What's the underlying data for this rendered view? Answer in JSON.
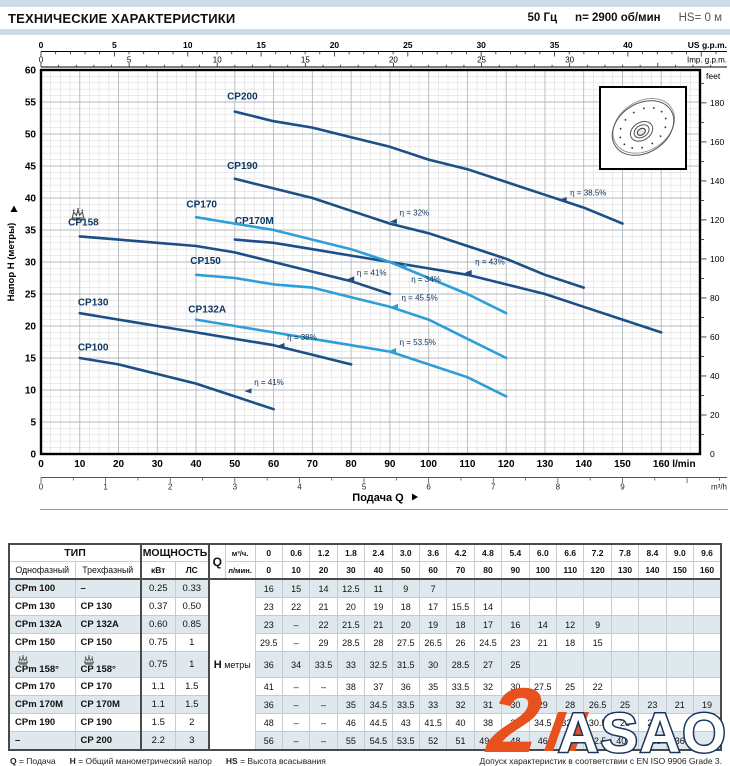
{
  "header": {
    "title": "ТЕХНИЧЕСКИЕ ХАРАКТЕРИСТИКИ",
    "frequency": "50 Гц",
    "speed": "n= 2900 об/мин",
    "suction": "HS= 0 м"
  },
  "chart_data": {
    "type": "line",
    "xlabel": "Подача Q",
    "ylabel": "Напор H (метры)",
    "x_unit": "l/min",
    "x_range": [
      0,
      170
    ],
    "y_range": [
      0,
      60
    ],
    "x_ticks_lmin": [
      0,
      10,
      20,
      30,
      40,
      50,
      60,
      70,
      80,
      90,
      100,
      110,
      120,
      130,
      140,
      150,
      160
    ],
    "y_ticks_m": [
      0,
      5,
      10,
      15,
      20,
      25,
      30,
      35,
      40,
      45,
      50,
      55,
      60
    ],
    "axis_us_gpm": {
      "label": "US g.p.m.",
      "ticks": [
        0,
        5,
        10,
        15,
        20,
        25,
        30,
        35,
        40
      ]
    },
    "axis_imp_gpm": {
      "label": "Imp. g.p.m.",
      "ticks": [
        0,
        5,
        10,
        15,
        20,
        25,
        30
      ]
    },
    "axis_m3h": {
      "label": "m³/h",
      "ticks": [
        0,
        1,
        2,
        3,
        4,
        5,
        6,
        7,
        8,
        9
      ]
    },
    "axis_feet": {
      "label": "feet",
      "ticks": [
        0,
        20,
        40,
        60,
        80,
        100,
        120,
        140,
        160,
        180
      ]
    },
    "colors": {
      "dark": "#1c4e87",
      "light": "#2d9ed8"
    },
    "series": [
      {
        "name": "CP100",
        "tone": "dark",
        "crown": false,
        "label_at": [
          9.5,
          16.2
        ],
        "points": [
          [
            10,
            15
          ],
          [
            20,
            14
          ],
          [
            30,
            12.5
          ],
          [
            40,
            11
          ],
          [
            50,
            9
          ],
          [
            60,
            7
          ]
        ]
      },
      {
        "name": "CP130",
        "tone": "dark",
        "crown": false,
        "label_at": [
          9.5,
          23.2
        ],
        "points": [
          [
            10,
            22
          ],
          [
            20,
            21
          ],
          [
            30,
            20
          ],
          [
            40,
            19
          ],
          [
            50,
            18
          ],
          [
            60,
            17
          ],
          [
            70,
            15.5
          ],
          [
            80,
            14
          ]
        ]
      },
      {
        "name": "CP132A",
        "tone": "light",
        "crown": false,
        "label_at": [
          38,
          22.1
        ],
        "points": [
          [
            40,
            21
          ],
          [
            50,
            20
          ],
          [
            60,
            19
          ],
          [
            70,
            18
          ],
          [
            80,
            17
          ],
          [
            90,
            16
          ],
          [
            100,
            14
          ],
          [
            110,
            12
          ],
          [
            120,
            9
          ]
        ]
      },
      {
        "name": "CP150",
        "tone": "light",
        "crown": false,
        "label_at": [
          38.5,
          29.7
        ],
        "points": [
          [
            40,
            28
          ],
          [
            50,
            27.5
          ],
          [
            60,
            26.5
          ],
          [
            70,
            26
          ],
          [
            80,
            24.5
          ],
          [
            90,
            23
          ],
          [
            100,
            21
          ],
          [
            110,
            18
          ],
          [
            120,
            15
          ]
        ]
      },
      {
        "name": "CP158",
        "tone": "dark",
        "crown": true,
        "label_at": [
          7,
          35.7
        ],
        "points": [
          [
            10,
            34
          ],
          [
            20,
            33.5
          ],
          [
            30,
            33
          ],
          [
            40,
            32.5
          ],
          [
            50,
            31.5
          ],
          [
            60,
            30
          ],
          [
            70,
            28.5
          ],
          [
            80,
            27
          ],
          [
            90,
            25
          ]
        ]
      },
      {
        "name": "CP170M",
        "tone": "dark",
        "crown": false,
        "label_at": [
          50,
          35.9
        ],
        "points": [
          [
            50,
            33.5
          ],
          [
            60,
            33
          ],
          [
            70,
            32
          ],
          [
            80,
            31
          ],
          [
            90,
            30
          ],
          [
            100,
            29
          ],
          [
            110,
            28
          ],
          [
            120,
            26.5
          ],
          [
            130,
            25
          ],
          [
            140,
            23
          ],
          [
            150,
            21
          ],
          [
            160,
            19
          ]
        ]
      },
      {
        "name": "CP170",
        "tone": "light",
        "crown": false,
        "label_at": [
          37.5,
          38.5
        ],
        "points": [
          [
            40,
            37
          ],
          [
            50,
            36
          ],
          [
            60,
            35
          ],
          [
            70,
            33.5
          ],
          [
            80,
            32
          ],
          [
            90,
            30
          ],
          [
            100,
            27.5
          ],
          [
            110,
            25
          ],
          [
            120,
            22
          ]
        ]
      },
      {
        "name": "CP190",
        "tone": "dark",
        "crown": false,
        "label_at": [
          48,
          44.5
        ],
        "points": [
          [
            50,
            43
          ],
          [
            60,
            41.5
          ],
          [
            70,
            40
          ],
          [
            80,
            38
          ],
          [
            90,
            36
          ],
          [
            100,
            34.5
          ],
          [
            110,
            32.5
          ],
          [
            120,
            30.5
          ],
          [
            130,
            28
          ],
          [
            140,
            26
          ]
        ]
      },
      {
        "name": "CP200",
        "tone": "dark",
        "crown": false,
        "label_at": [
          48,
          55.4
        ],
        "points": [
          [
            50,
            53.5
          ],
          [
            60,
            52
          ],
          [
            70,
            51
          ],
          [
            80,
            49.5
          ],
          [
            90,
            48
          ],
          [
            100,
            46
          ],
          [
            110,
            44.5
          ],
          [
            120,
            42.5
          ],
          [
            130,
            40.5
          ],
          [
            140,
            38.5
          ],
          [
            150,
            36
          ]
        ]
      }
    ],
    "efficiency_labels": [
      {
        "text": "η = 41%",
        "at": [
          55,
          10.8
        ],
        "arrow": [
          52.5,
          9.8
        ],
        "tone": "dark"
      },
      {
        "text": "η = 38%",
        "at": [
          63.5,
          17.8
        ],
        "arrow": [
          61,
          16.9
        ],
        "tone": "dark"
      },
      {
        "text": "η = 53.5%",
        "at": [
          92.5,
          17.0
        ],
        "arrow": [
          89.8,
          16.1
        ],
        "tone": "light"
      },
      {
        "text": "η = 45.5%",
        "at": [
          93,
          24.0
        ],
        "arrow": [
          90.3,
          23.0
        ],
        "tone": "light"
      },
      {
        "text": "η = 41%",
        "at": [
          81.5,
          27.9
        ],
        "arrow": [
          79,
          27.3
        ],
        "tone": "dark"
      },
      {
        "text": "η = 34%",
        "at": [
          95.5,
          26.9
        ],
        "arrow": [
          92.5,
          29.3
        ],
        "tone": "light"
      },
      {
        "text": "η = 43%",
        "at": [
          112,
          29.6
        ],
        "arrow": [
          109.3,
          28.3
        ],
        "tone": "dark"
      },
      {
        "text": "η = 32%",
        "at": [
          92.5,
          37.3
        ],
        "arrow": [
          90,
          36.3
        ],
        "tone": "dark"
      },
      {
        "text": "η = 38.5%",
        "at": [
          136.5,
          40.4
        ],
        "arrow": [
          133.8,
          39.7
        ],
        "tone": "dark"
      }
    ]
  },
  "table": {
    "col_groups": {
      "type": "ТИП",
      "power": "МОЩНОСТЬ"
    },
    "headers": {
      "single": "Однофазный",
      "three": "Трехфазный",
      "kw": "кВт",
      "hp": "ЛС",
      "q": "Q",
      "m3h": "м³/ч.",
      "lmin": "л/мин.",
      "h_label": "H",
      "h_unit": "метры"
    },
    "q_m3h": [
      "0",
      "0.6",
      "1.2",
      "1.8",
      "2.4",
      "3.0",
      "3.6",
      "4.2",
      "4.8",
      "5.4",
      "6.0",
      "6.6",
      "7.2",
      "7.8",
      "8.4",
      "9.0",
      "9.6"
    ],
    "q_lmin": [
      "0",
      "10",
      "20",
      "30",
      "40",
      "50",
      "60",
      "70",
      "80",
      "90",
      "100",
      "110",
      "120",
      "130",
      "140",
      "150",
      "160"
    ],
    "rows": [
      {
        "single": "CPm 100",
        "three": "–",
        "kw": "0.25",
        "hp": "0.33",
        "crown": false,
        "values": [
          "16",
          "15",
          "14",
          "12.5",
          "11",
          "9",
          "7",
          "",
          "",
          "",
          "",
          "",
          "",
          "",
          "",
          "",
          ""
        ]
      },
      {
        "single": "CPm 130",
        "three": "CP 130",
        "kw": "0.37",
        "hp": "0.50",
        "crown": false,
        "values": [
          "23",
          "22",
          "21",
          "20",
          "19",
          "18",
          "17",
          "15.5",
          "14",
          "",
          "",
          "",
          "",
          "",
          "",
          "",
          ""
        ]
      },
      {
        "single": "CPm 132A",
        "three": "CP 132A",
        "kw": "0.60",
        "hp": "0.85",
        "crown": false,
        "values": [
          "23",
          "–",
          "22",
          "21.5",
          "21",
          "20",
          "19",
          "18",
          "17",
          "16",
          "14",
          "12",
          "9",
          "",
          "",
          "",
          ""
        ]
      },
      {
        "single": "CPm 150",
        "three": "CP 150",
        "kw": "0.75",
        "hp": "1",
        "crown": false,
        "values": [
          "29.5",
          "–",
          "29",
          "28.5",
          "28",
          "27.5",
          "26.5",
          "26",
          "24.5",
          "23",
          "21",
          "18",
          "15",
          "",
          "",
          "",
          ""
        ]
      },
      {
        "single": "CPm 158°",
        "three": "CP 158°",
        "kw": "0.75",
        "hp": "1",
        "crown": true,
        "values": [
          "36",
          "34",
          "33.5",
          "33",
          "32.5",
          "31.5",
          "30",
          "28.5",
          "27",
          "25",
          "",
          "",
          "",
          "",
          "",
          "",
          ""
        ]
      },
      {
        "single": "CPm 170",
        "three": "CP 170",
        "kw": "1.1",
        "hp": "1.5",
        "crown": false,
        "values": [
          "41",
          "–",
          "–",
          "38",
          "37",
          "36",
          "35",
          "33.5",
          "32",
          "30",
          "27.5",
          "25",
          "22",
          "",
          "",
          "",
          ""
        ]
      },
      {
        "single": "CPm 170M",
        "three": "CP 170M",
        "kw": "1.1",
        "hp": "1.5",
        "crown": false,
        "values": [
          "36",
          "–",
          "–",
          "35",
          "34.5",
          "33.5",
          "33",
          "32",
          "31",
          "30",
          "29",
          "28",
          "26.5",
          "25",
          "23",
          "21",
          "19"
        ]
      },
      {
        "single": "CPm 190",
        "three": "CP 190",
        "kw": "1.5",
        "hp": "2",
        "crown": false,
        "values": [
          "48",
          "–",
          "–",
          "46",
          "44.5",
          "43",
          "41.5",
          "40",
          "38",
          "36",
          "34.5",
          "32.5",
          "30.5",
          "28",
          "26",
          "",
          ""
        ]
      },
      {
        "single": "–",
        "three": "CP 200",
        "kw": "2.2",
        "hp": "3",
        "crown": false,
        "values": [
          "56",
          "–",
          "–",
          "55",
          "54.5",
          "53.5",
          "52",
          "51",
          "49.5",
          "48",
          "46",
          "44.5",
          "42.5",
          "40.5",
          "38.5",
          "36",
          ""
        ]
      }
    ]
  },
  "legend": {
    "items": [
      [
        "Q",
        "= Подача"
      ],
      [
        "H",
        "= Общий манометрический напор"
      ],
      [
        "HS",
        "= Высота всасывания"
      ]
    ],
    "tolerance": "Допуск характеристик в соответствии с EN ISO 9906 Grade 3."
  },
  "watermark": {
    "numeral": "2",
    "text": "ASAO"
  }
}
